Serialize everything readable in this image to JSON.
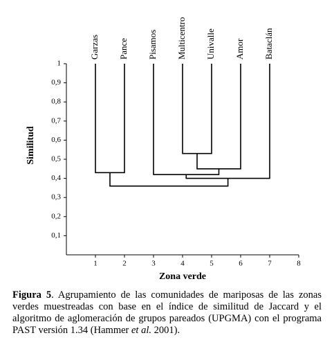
{
  "chart_data": {
    "type": "dendrogram",
    "leaves": [
      "Garzas",
      "Pance",
      "Pisamos",
      "Multicentro",
      "Univalle",
      "Amor",
      "Bataclán"
    ],
    "merges": [
      {
        "children": [
          0,
          1
        ],
        "height": 0.43
      },
      {
        "children": [
          3,
          4
        ],
        "height": 0.53
      },
      {
        "children": [
          8,
          5
        ],
        "height": 0.45
      },
      {
        "children": [
          2,
          9
        ],
        "height": 0.42
      },
      {
        "children": [
          10,
          6
        ],
        "height": 0.4
      },
      {
        "children": [
          7,
          11
        ],
        "height": 0.36
      }
    ],
    "x_label": "Zona verde",
    "y_label": "Similitud",
    "xlim": [
      0,
      8
    ],
    "xticks": [
      1,
      2,
      3,
      4,
      5,
      6,
      7,
      8
    ],
    "ylim": [
      0,
      1
    ],
    "yticks": [
      {
        "value": 0.1,
        "label": "0,1"
      },
      {
        "value": 0.2,
        "label": "0,2"
      },
      {
        "value": 0.3,
        "label": "0,3"
      },
      {
        "value": 0.4,
        "label": "0,4"
      },
      {
        "value": 0.5,
        "label": "0,5"
      },
      {
        "value": 0.6,
        "label": "0,6"
      },
      {
        "value": 0.7,
        "label": "0,7"
      },
      {
        "value": 0.8,
        "label": "0,8"
      },
      {
        "value": 0.9,
        "label": "0,9"
      },
      1
    ],
    "color": "#000000"
  },
  "caption": [
    "Figura 5",
    ". Agrupamiento de las comunidades de mariposas de las zonas verdes muestreadas con base en el índice de similitud de Jaccard y el algoritmo de aglomeración de grupos pareados (UPGMA) con el programa PAST versión 1.34 (Hammer ",
    "et al.",
    " 2001)."
  ]
}
